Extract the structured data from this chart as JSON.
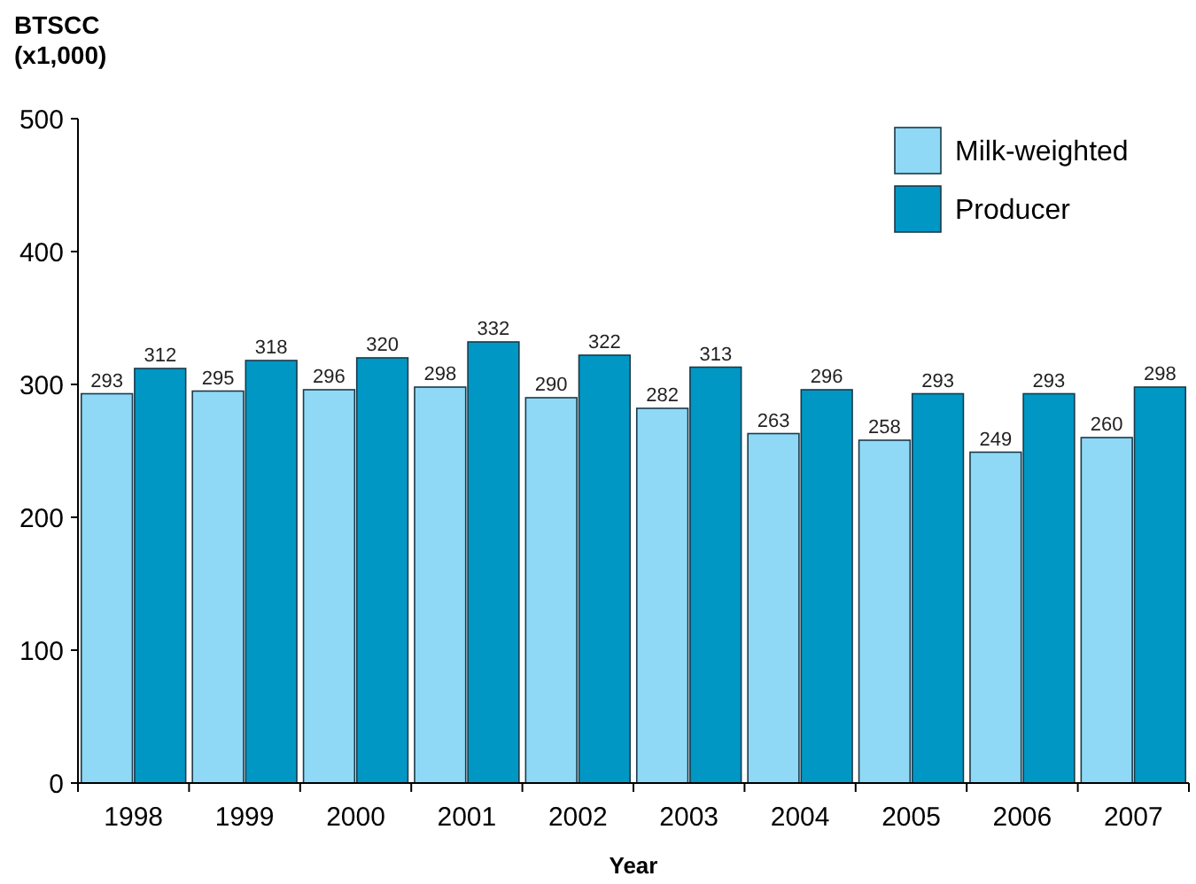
{
  "chart_data": {
    "type": "bar",
    "xlabel": "Year",
    "ylabel": "BTSCC\n(x1,000)",
    "categories": [
      "1998",
      "1999",
      "2000",
      "2001",
      "2002",
      "2003",
      "2004",
      "2005",
      "2006",
      "2007"
    ],
    "series": [
      {
        "name": "Milk-weighted",
        "color": "#8fd9f6",
        "values": [
          293,
          295,
          296,
          298,
          290,
          282,
          263,
          258,
          249,
          260
        ]
      },
      {
        "name": "Producer",
        "color": "#0097c4",
        "values": [
          312,
          318,
          320,
          332,
          322,
          313,
          296,
          293,
          293,
          298
        ]
      }
    ],
    "ylim": [
      0,
      500
    ],
    "yticks": [
      0,
      100,
      200,
      300,
      400,
      500
    ],
    "grid": false,
    "legend": "top right",
    "data_labels": true
  }
}
